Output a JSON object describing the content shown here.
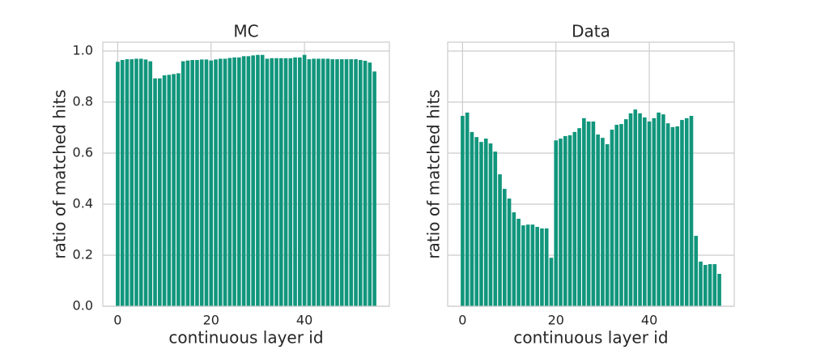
{
  "chart_data": [
    {
      "type": "bar",
      "title": "MC",
      "x_label": "continuous layer id",
      "y_label": "ratio of matched hits",
      "x": [
        0,
        1,
        2,
        3,
        4,
        5,
        6,
        7,
        8,
        9,
        10,
        11,
        12,
        13,
        14,
        15,
        16,
        17,
        18,
        19,
        20,
        21,
        22,
        23,
        24,
        25,
        26,
        27,
        28,
        29,
        30,
        31,
        32,
        33,
        34,
        35,
        36,
        37,
        38,
        39,
        40,
        41,
        42,
        43,
        44,
        45,
        46,
        47,
        48,
        49,
        50,
        51,
        52,
        53,
        54,
        55
      ],
      "values": [
        0.958,
        0.965,
        0.968,
        0.968,
        0.97,
        0.97,
        0.967,
        0.96,
        0.893,
        0.893,
        0.905,
        0.907,
        0.91,
        0.913,
        0.96,
        0.963,
        0.965,
        0.965,
        0.967,
        0.967,
        0.963,
        0.967,
        0.97,
        0.97,
        0.973,
        0.975,
        0.975,
        0.98,
        0.98,
        0.983,
        0.985,
        0.985,
        0.97,
        0.972,
        0.972,
        0.972,
        0.972,
        0.972,
        0.975,
        0.975,
        0.985,
        0.968,
        0.97,
        0.97,
        0.97,
        0.97,
        0.968,
        0.968,
        0.968,
        0.968,
        0.968,
        0.968,
        0.965,
        0.962,
        0.955,
        0.92
      ],
      "color": "#11967c",
      "xlim": [
        -3.19,
        58.19
      ],
      "xticks": [
        0,
        20,
        40
      ],
      "ylim": [
        0,
        1.035
      ],
      "yticks": [
        {
          "value": 0,
          "label": "0.0"
        },
        0.2,
        0.4,
        0.6,
        0.8,
        {
          "value": 1,
          "label": "1.0"
        }
      ],
      "show_ytick_labels": true,
      "grid": true
    },
    {
      "type": "bar",
      "title": "Data",
      "x_label": "continuous layer id",
      "y_label": "ratio of matched hits",
      "x": [
        0,
        1,
        2,
        3,
        4,
        5,
        6,
        7,
        8,
        9,
        10,
        11,
        12,
        13,
        14,
        15,
        16,
        17,
        18,
        19,
        20,
        21,
        22,
        23,
        24,
        25,
        26,
        27,
        28,
        29,
        30,
        31,
        32,
        33,
        34,
        35,
        36,
        37,
        38,
        39,
        40,
        41,
        42,
        43,
        44,
        45,
        46,
        47,
        48,
        49,
        50,
        51,
        52,
        53,
        54,
        55
      ],
      "values": [
        0.746,
        0.759,
        0.683,
        0.663,
        0.644,
        0.657,
        0.638,
        0.606,
        0.517,
        0.46,
        0.422,
        0.368,
        0.343,
        0.317,
        0.32,
        0.32,
        0.311,
        0.305,
        0.305,
        0.19,
        0.65,
        0.657,
        0.667,
        0.67,
        0.683,
        0.698,
        0.737,
        0.724,
        0.724,
        0.673,
        0.66,
        0.635,
        0.692,
        0.711,
        0.714,
        0.733,
        0.756,
        0.771,
        0.756,
        0.74,
        0.724,
        0.737,
        0.759,
        0.752,
        0.717,
        0.702,
        0.705,
        0.73,
        0.737,
        0.746,
        0.276,
        0.175,
        0.162,
        0.165,
        0.165,
        0.127
      ],
      "color": "#11967c",
      "xlim": [
        -3.19,
        58.19
      ],
      "xticks": [
        0,
        20,
        40
      ],
      "ylim": [
        0,
        1.035
      ],
      "yticks": [
        0,
        0.2,
        0.4,
        0.6,
        0.8,
        1
      ],
      "show_ytick_labels": false,
      "grid": true
    }
  ]
}
